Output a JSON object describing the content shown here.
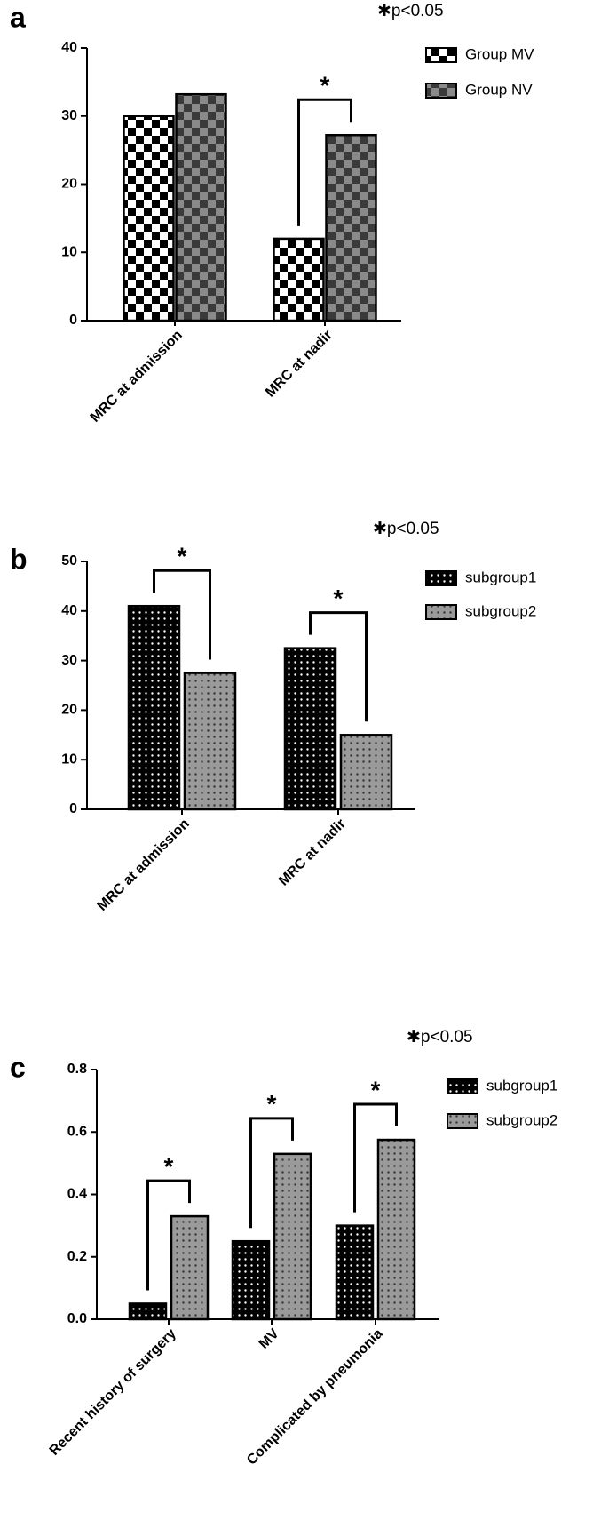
{
  "chart_data": [
    {
      "type": "bar",
      "panel_label": "a",
      "annotation": "✱p<0.05",
      "categories": [
        "MRC at admission",
        "MRC at nadir"
      ],
      "series": [
        {
          "name": "Group MV",
          "color": "#ffffff",
          "pattern_color": "#000000",
          "pattern": "checker",
          "values": [
            30,
            12
          ]
        },
        {
          "name": "Group NV",
          "color": "#8a8a8a",
          "pattern_color": "#3a3a3a",
          "pattern": "checker",
          "values": [
            33.2,
            27.2
          ]
        }
      ],
      "significance": [
        null,
        "*"
      ],
      "ylim": [
        0,
        40
      ],
      "yticks": [
        0,
        10,
        20,
        30,
        40
      ],
      "grid": false
    },
    {
      "type": "bar",
      "panel_label": "b",
      "annotation": "✱p<0.05",
      "categories": [
        "MRC at admission",
        "MRC at nadir"
      ],
      "series": [
        {
          "name": "subgroup1",
          "color": "#000000",
          "pattern_color": "#ffffff",
          "pattern": "dots",
          "values": [
            41,
            32.5
          ]
        },
        {
          "name": "subgroup2",
          "color": "#9a9a9a",
          "pattern_color": "#333333",
          "pattern": "dots",
          "values": [
            27.5,
            15
          ]
        }
      ],
      "significance": [
        "*",
        "*"
      ],
      "ylim": [
        0,
        50
      ],
      "yticks": [
        0,
        10,
        20,
        30,
        40,
        50
      ],
      "grid": false
    },
    {
      "type": "bar",
      "panel_label": "c",
      "annotation": "✱p<0.05",
      "categories": [
        "Recent history of surgery",
        "MV",
        "Complicated by pneumonia"
      ],
      "series": [
        {
          "name": "subgroup1",
          "color": "#000000",
          "pattern_color": "#ffffff",
          "pattern": "dots",
          "values": [
            0.05,
            0.25,
            0.3
          ]
        },
        {
          "name": "subgroup2",
          "color": "#9a9a9a",
          "pattern_color": "#333333",
          "pattern": "dots",
          "values": [
            0.33,
            0.53,
            0.575
          ]
        }
      ],
      "significance": [
        "*",
        "*",
        "*"
      ],
      "ylim": [
        0,
        0.8
      ],
      "yticks": [
        {
          "value": 0,
          "label": "0.0"
        },
        0.2,
        0.4,
        0.6,
        0.8
      ],
      "grid": false
    }
  ]
}
